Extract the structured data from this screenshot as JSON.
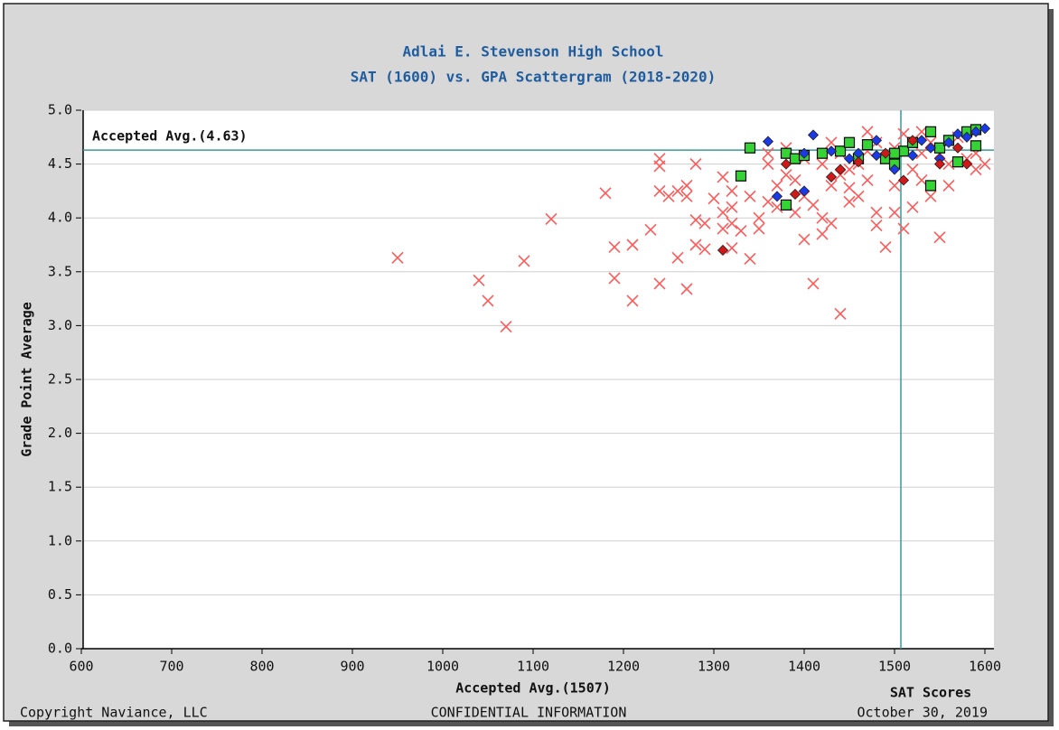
{
  "chart_data": {
    "type": "scatter",
    "title": "Adlai E. Stevenson High School",
    "subtitle": "SAT (1600) vs. GPA Scattergram (2018-2020)",
    "x_label": "SAT Scores",
    "y_label": "Grade Point Average",
    "xlim": [
      600,
      1600
    ],
    "ylim": [
      0,
      5
    ],
    "xticks": [
      600,
      700,
      800,
      900,
      1000,
      1100,
      1200,
      1300,
      1400,
      1500,
      1600
    ],
    "yticks": [
      {
        "value": 0,
        "label": "0.0"
      },
      {
        "value": 0.5,
        "label": "0.5"
      },
      {
        "value": 1,
        "label": "1.0"
      },
      {
        "value": 1.5,
        "label": "1.5"
      },
      {
        "value": 2,
        "label": "2.0"
      },
      {
        "value": 2.5,
        "label": "2.5"
      },
      {
        "value": 3,
        "label": "3.0"
      },
      {
        "value": 3.5,
        "label": "3.5"
      },
      {
        "value": 4,
        "label": "4.0"
      },
      {
        "value": 4.5,
        "label": "4.5"
      },
      {
        "value": 5,
        "label": "5.0"
      }
    ],
    "grid": true,
    "reference_lines": [
      {
        "axis": "y",
        "value": 4.63,
        "label": "Accepted Avg.(4.63)",
        "color": "#3a9a9a"
      },
      {
        "axis": "x",
        "value": 1507,
        "label": "Accepted Avg.(1507)",
        "color": "#3a9a9a"
      }
    ],
    "series": [
      {
        "marker": "x",
        "color": "#ff5a5a",
        "x": [
          950,
          1040,
          1050,
          1070,
          1090,
          1120,
          1180,
          1190,
          1190,
          1210,
          1210,
          1230,
          1240,
          1240,
          1240,
          1240,
          1250,
          1260,
          1260,
          1270,
          1270,
          1270,
          1280,
          1280,
          1280,
          1290,
          1290,
          1300,
          1310,
          1310,
          1310,
          1320,
          1320,
          1320,
          1320,
          1330,
          1340,
          1340,
          1350,
          1350,
          1360,
          1360,
          1360,
          1370,
          1370,
          1380,
          1380,
          1390,
          1390,
          1400,
          1400,
          1400,
          1410,
          1410,
          1420,
          1420,
          1420,
          1430,
          1430,
          1430,
          1440,
          1440,
          1440,
          1450,
          1450,
          1460,
          1460,
          1470,
          1470,
          1480,
          1480,
          1480,
          1490,
          1490,
          1500,
          1500,
          1510,
          1510,
          1520,
          1520,
          1530,
          1530,
          1540,
          1540,
          1550,
          1550,
          1560,
          1570,
          1580,
          1590,
          1590,
          1600,
          1500,
          1450,
          1470,
          1530,
          1560
        ],
        "values": [
          3.63,
          3.42,
          3.23,
          2.99,
          3.6,
          3.99,
          4.23,
          3.73,
          3.44,
          3.75,
          3.23,
          3.89,
          4.55,
          4.48,
          4.25,
          3.39,
          4.2,
          4.25,
          3.63,
          4.3,
          4.2,
          3.34,
          4.5,
          3.98,
          3.75,
          3.95,
          3.71,
          4.18,
          4.38,
          3.9,
          4.05,
          4.25,
          4.1,
          3.95,
          3.72,
          3.88,
          4.2,
          3.62,
          4.0,
          3.9,
          4.6,
          4.5,
          4.15,
          4.1,
          4.3,
          4.4,
          4.65,
          4.35,
          4.05,
          4.55,
          3.8,
          4.2,
          4.12,
          3.39,
          4.0,
          3.85,
          4.5,
          4.7,
          4.3,
          3.95,
          4.6,
          3.11,
          4.4,
          4.28,
          4.45,
          4.5,
          4.2,
          4.8,
          4.35,
          4.7,
          4.05,
          3.93,
          3.73,
          4.55,
          4.65,
          4.3,
          3.9,
          4.78,
          4.45,
          4.1,
          4.6,
          4.35,
          4.7,
          4.2,
          3.82,
          4.6,
          4.5,
          4.75,
          4.55,
          4.45,
          4.6,
          4.5,
          4.05,
          4.15,
          4.62,
          4.8,
          4.3
        ]
      },
      {
        "marker": "square",
        "color": "#33d433",
        "x": [
          1330,
          1340,
          1380,
          1380,
          1390,
          1400,
          1420,
          1440,
          1450,
          1460,
          1470,
          1490,
          1500,
          1510,
          1520,
          1540,
          1540,
          1550,
          1560,
          1570,
          1580,
          1590,
          1590,
          1500
        ],
        "values": [
          4.39,
          4.65,
          4.12,
          4.6,
          4.55,
          4.58,
          4.6,
          4.62,
          4.7,
          4.55,
          4.68,
          4.55,
          4.5,
          4.62,
          4.7,
          4.8,
          4.3,
          4.65,
          4.72,
          4.52,
          4.8,
          4.82,
          4.67,
          4.6
        ]
      },
      {
        "marker": "diamond",
        "color": "#1a3ae8",
        "x": [
          1360,
          1370,
          1400,
          1410,
          1400,
          1430,
          1450,
          1460,
          1480,
          1480,
          1500,
          1530,
          1540,
          1550,
          1560,
          1570,
          1580,
          1590,
          1600,
          1520
        ],
        "values": [
          4.71,
          4.2,
          4.25,
          4.77,
          4.6,
          4.62,
          4.55,
          4.6,
          4.72,
          4.58,
          4.45,
          4.72,
          4.65,
          4.55,
          4.7,
          4.78,
          4.75,
          4.8,
          4.83,
          4.58
        ]
      },
      {
        "marker": "diamond",
        "color": "#d01818",
        "x": [
          1310,
          1390,
          1380,
          1430,
          1440,
          1460,
          1510,
          1520,
          1550,
          1580,
          1570,
          1490
        ],
        "values": [
          3.7,
          4.22,
          4.5,
          4.38,
          4.45,
          4.52,
          4.35,
          4.72,
          4.5,
          4.5,
          4.65,
          4.6
        ]
      }
    ],
    "footer_left": "Copyright Naviance, LLC",
    "footer_center": "CONFIDENTIAL INFORMATION",
    "footer_right": "October 30, 2019"
  }
}
